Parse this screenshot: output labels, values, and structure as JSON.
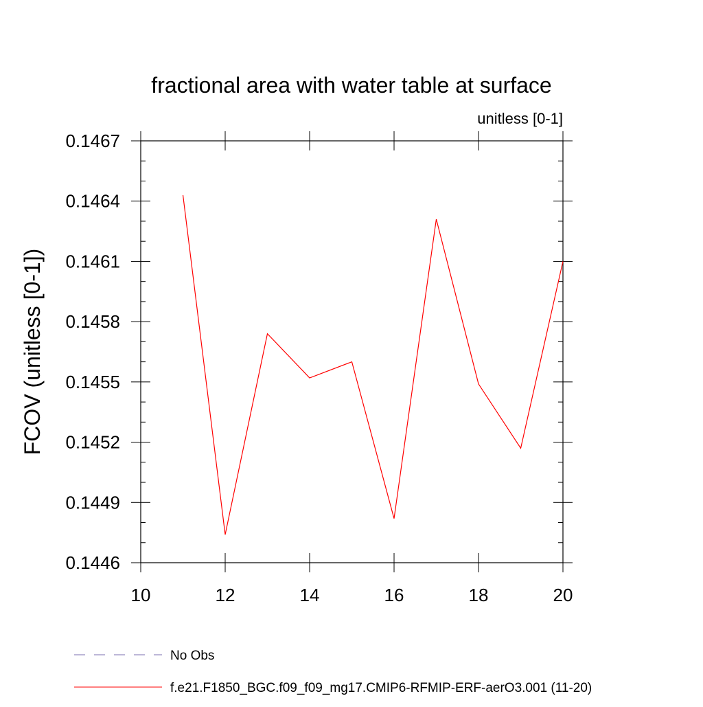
{
  "chart_data": {
    "type": "line",
    "title": "fractional area with water table at surface",
    "subtitle": "unitless [0-1]",
    "xlabel": "",
    "ylabel": "FCOV  (unitless [0-1])",
    "xlim": [
      10,
      20
    ],
    "ylim": [
      0.1446,
      0.1467
    ],
    "x_ticks": [
      "10",
      "12",
      "14",
      "16",
      "18",
      "20"
    ],
    "y_ticks": [
      "0.1446",
      "0.1449",
      "0.1452",
      "0.1455",
      "0.1458",
      "0.1461",
      "0.1464",
      "0.1467"
    ],
    "grid": false,
    "legend_position": "bottom",
    "series": [
      {
        "name": "No Obs",
        "color": "#7b6fb0",
        "dash": "dashed",
        "x": [],
        "y": []
      },
      {
        "name": "f.e21.F1850_BGC.f09_f09_mg17.CMIP6-RFMIP-ERF-aerO3.001 (11-20)",
        "color": "#ff0000",
        "dash": "solid",
        "x": [
          11,
          12,
          13,
          14,
          15,
          16,
          17,
          18,
          19,
          20
        ],
        "y": [
          0.14643,
          0.14474,
          0.14574,
          0.14552,
          0.1456,
          0.14482,
          0.14631,
          0.14549,
          0.14517,
          0.1461
        ]
      }
    ]
  }
}
